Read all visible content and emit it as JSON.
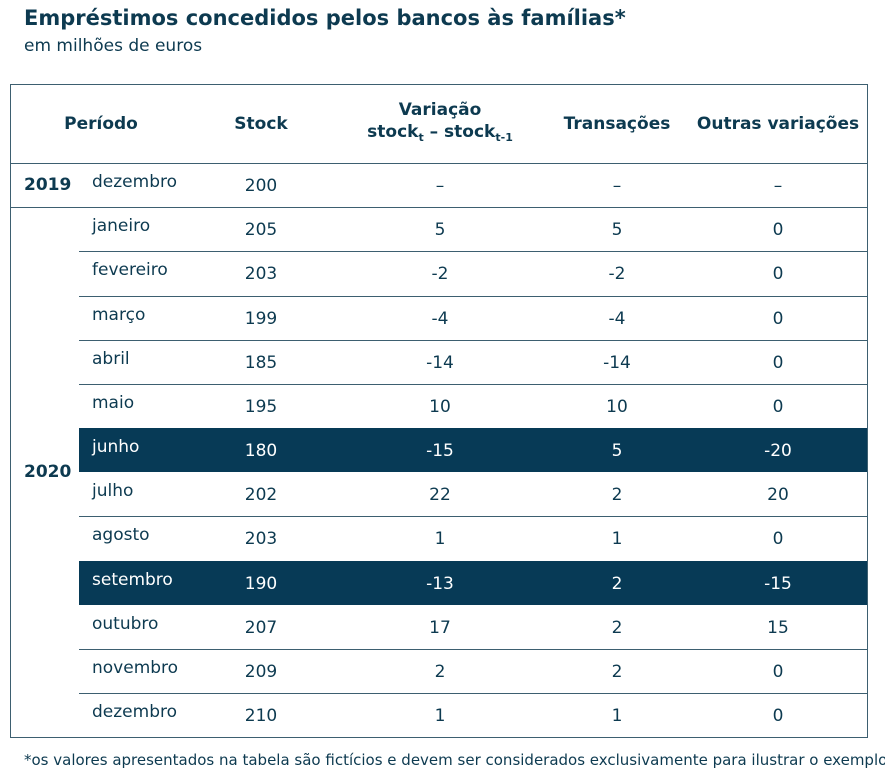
{
  "title": "Empréstimos concedidos pelos bancos às famílias*",
  "subtitle": "em milhões de euros",
  "table": {
    "header": {
      "period": "Período",
      "stock": "Stock",
      "variation": {
        "line1": "Variação",
        "a": "stock",
        "a_sub": "t",
        "b": " – stock",
        "b_sub": "t-1"
      },
      "transactions": "Transações",
      "other": "Outras variações"
    },
    "groups": [
      {
        "year": "2019",
        "rows": [
          {
            "month": "dezembro",
            "stock": 200,
            "variation": "–",
            "transactions": "–",
            "other": "–"
          }
        ]
      },
      {
        "year": "2020",
        "rows": [
          {
            "month": "janeiro",
            "stock": 205,
            "variation": 5,
            "transactions": 5,
            "other": 0
          },
          {
            "month": "fevereiro",
            "stock": 203,
            "variation": -2,
            "transactions": -2,
            "other": 0
          },
          {
            "month": "março",
            "stock": 199,
            "variation": -4,
            "transactions": -4,
            "other": 0
          },
          {
            "month": "abril",
            "stock": 185,
            "variation": -14,
            "transactions": -14,
            "other": 0
          },
          {
            "month": "maio",
            "stock": 195,
            "variation": 10,
            "transactions": 10,
            "other": 0
          },
          {
            "month": "junho",
            "stock": 180,
            "variation": -15,
            "transactions": 5,
            "other": -20,
            "highlight": true
          },
          {
            "month": "julho",
            "stock": 202,
            "variation": 22,
            "transactions": 2,
            "other": 20
          },
          {
            "month": "agosto",
            "stock": 203,
            "variation": 1,
            "transactions": 1,
            "other": 0
          },
          {
            "month": "setembro",
            "stock": 190,
            "variation": -13,
            "transactions": 2,
            "other": -15,
            "highlight": true
          },
          {
            "month": "outubro",
            "stock": 207,
            "variation": 17,
            "transactions": 2,
            "other": 15
          },
          {
            "month": "novembro",
            "stock": 209,
            "variation": 2,
            "transactions": 2,
            "other": 0
          },
          {
            "month": "dezembro",
            "stock": 210,
            "variation": 1,
            "transactions": 1,
            "other": 0
          }
        ]
      }
    ]
  },
  "footnote": "*os valores apresentados na tabela são fictícios e devem ser considerados exclusivamente para ilustrar o exemplo"
}
